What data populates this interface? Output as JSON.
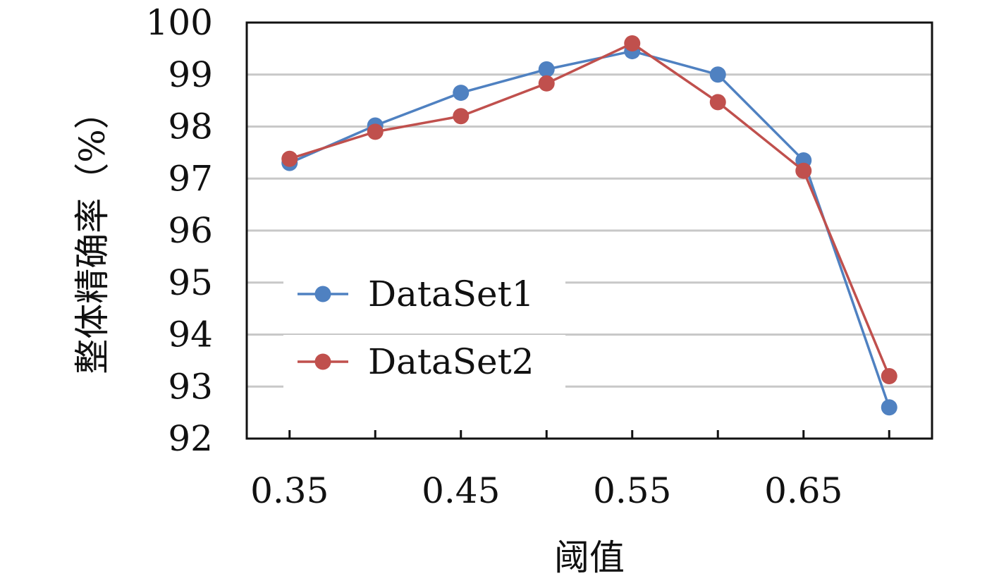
{
  "chart_data": {
    "type": "line",
    "title": "",
    "xlabel": "阈值",
    "ylabel": "整体精确率（%）",
    "x": [
      0.35,
      0.4,
      0.45,
      0.5,
      0.55,
      0.6,
      0.65,
      0.7
    ],
    "x_tick_labels": [
      "0.35",
      "0.45",
      "0.55",
      "0.65"
    ],
    "x_ticks": [
      0.35,
      0.45,
      0.55,
      0.65
    ],
    "xlim": [
      0.325,
      0.725
    ],
    "ylim": [
      92,
      100
    ],
    "y_ticks": [
      92,
      93,
      94,
      95,
      96,
      97,
      98,
      99,
      100
    ],
    "y_tick_labels": [
      "92",
      "93",
      "94",
      "95",
      "96",
      "97",
      "98",
      "99",
      "100"
    ],
    "grid": "horizontal",
    "legend_position": "center-left",
    "series": [
      {
        "name": "DataSet1",
        "color": "#4f81c1",
        "values": [
          97.3,
          98.02,
          98.65,
          99.1,
          99.45,
          99.0,
          97.35,
          92.6
        ]
      },
      {
        "name": "DataSet2",
        "color": "#c0504d",
        "values": [
          97.38,
          97.9,
          98.2,
          98.83,
          99.6,
          98.47,
          97.15,
          93.2
        ]
      }
    ]
  }
}
